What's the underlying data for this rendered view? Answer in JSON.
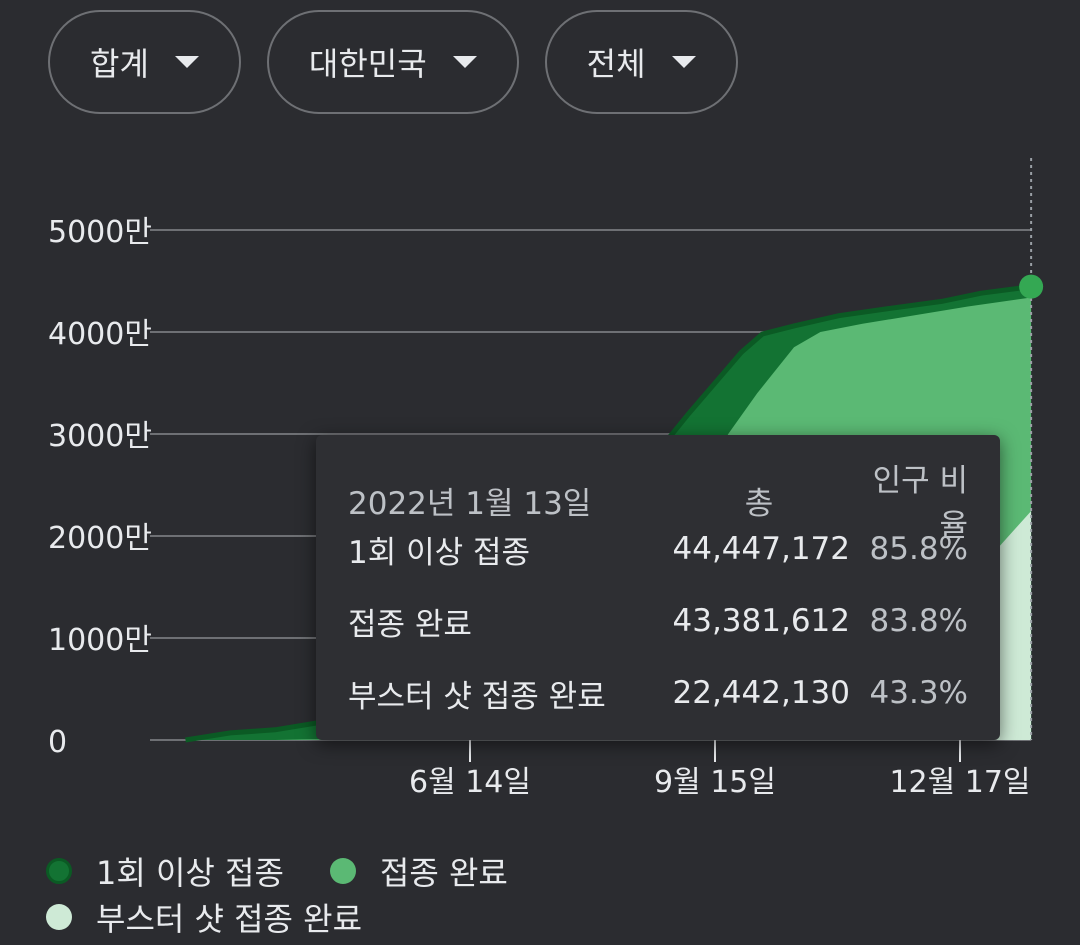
{
  "filters": [
    {
      "label": "합계"
    },
    {
      "label": "대한민국"
    },
    {
      "label": "전체"
    }
  ],
  "colors": {
    "first_dose": "#137333",
    "first_dose_border": "#0b5a24",
    "fully": "#5bb974",
    "booster": "#ceead6",
    "grid": "#6e7074",
    "text": "#e8eaed"
  },
  "chart_data": {
    "type": "area",
    "yticks": [
      {
        "value": 0,
        "label": "0"
      },
      {
        "value": 10000000,
        "label": "1000만"
      },
      {
        "value": 20000000,
        "label": "2000만"
      },
      {
        "value": 30000000,
        "label": "3000만"
      },
      {
        "value": 40000000,
        "label": "4000만"
      },
      {
        "value": 50000000,
        "label": "5000만"
      }
    ],
    "xticks": [
      {
        "date": "2021-06-14",
        "label": "6월 14일"
      },
      {
        "date": "2021-09-15",
        "label": "9월 15일"
      },
      {
        "date": "2021-12-17",
        "label": "12월 17일"
      }
    ],
    "xrange": [
      "2021-02-26",
      "2022-01-13"
    ],
    "ylim": [
      0,
      50000000
    ],
    "series": [
      {
        "name": "1회 이상 접종",
        "points": [
          [
            "2021-02-26",
            0
          ],
          [
            "2021-03-15",
            700000
          ],
          [
            "2021-04-01",
            1000000
          ],
          [
            "2021-04-20",
            1800000
          ],
          [
            "2021-05-05",
            3700000
          ],
          [
            "2021-05-25",
            5500000
          ],
          [
            "2021-06-10",
            10000000
          ],
          [
            "2021-06-25",
            15200000
          ],
          [
            "2021-07-10",
            15800000
          ],
          [
            "2021-07-25",
            18500000
          ],
          [
            "2021-08-10",
            22000000
          ],
          [
            "2021-08-25",
            28500000
          ],
          [
            "2021-09-05",
            32000000
          ],
          [
            "2021-09-15",
            35000000
          ],
          [
            "2021-09-25",
            38000000
          ],
          [
            "2021-10-03",
            39800000
          ],
          [
            "2021-10-15",
            40600000
          ],
          [
            "2021-11-01",
            41600000
          ],
          [
            "2021-11-20",
            42300000
          ],
          [
            "2021-12-10",
            43000000
          ],
          [
            "2021-12-25",
            43800000
          ],
          [
            "2022-01-13",
            44447172
          ]
        ]
      },
      {
        "name": "접종 완료",
        "points": [
          [
            "2021-02-26",
            0
          ],
          [
            "2021-04-01",
            0
          ],
          [
            "2021-04-20",
            100000
          ],
          [
            "2021-05-10",
            300000
          ],
          [
            "2021-06-01",
            1000000
          ],
          [
            "2021-06-15",
            2000000
          ],
          [
            "2021-07-01",
            4000000
          ],
          [
            "2021-07-20",
            6000000
          ],
          [
            "2021-08-10",
            10500000
          ],
          [
            "2021-08-25",
            18000000
          ],
          [
            "2021-09-10",
            25000000
          ],
          [
            "2021-09-20",
            30000000
          ],
          [
            "2021-10-01",
            34000000
          ],
          [
            "2021-10-15",
            38500000
          ],
          [
            "2021-10-25",
            40000000
          ],
          [
            "2021-11-10",
            40800000
          ],
          [
            "2021-12-01",
            41700000
          ],
          [
            "2021-12-20",
            42500000
          ],
          [
            "2022-01-13",
            43381612
          ]
        ]
      },
      {
        "name": "부스터 샷 접종 완료",
        "points": [
          [
            "2021-02-26",
            0
          ],
          [
            "2021-10-01",
            0
          ],
          [
            "2021-10-20",
            300000
          ],
          [
            "2021-11-05",
            1500000
          ],
          [
            "2021-11-20",
            4000000
          ],
          [
            "2021-12-01",
            7000000
          ],
          [
            "2021-12-10",
            11000000
          ],
          [
            "2021-12-20",
            15000000
          ],
          [
            "2022-01-01",
            19000000
          ],
          [
            "2022-01-13",
            22442130
          ]
        ]
      }
    ],
    "grid": true,
    "legend_position": "bottom"
  },
  "tooltip": {
    "date": "2022년 1월 13일",
    "total_header": "총",
    "ratio_header": "인구 비율",
    "rows": [
      {
        "label": "1회 이상 접종",
        "total": "44,447,172",
        "ratio": "85.8%"
      },
      {
        "label": "접종 완료",
        "total": "43,381,612",
        "ratio": "83.8%"
      },
      {
        "label": "부스터 샷 접종 완료",
        "total": "22,442,130",
        "ratio": "43.3%"
      }
    ]
  },
  "legend": [
    {
      "label": "1회 이상 접종",
      "color": "#137333"
    },
    {
      "label": "접종 완료",
      "color": "#5bb974"
    },
    {
      "label": "부스터 샷 접종 완료",
      "color": "#ceead6"
    }
  ]
}
